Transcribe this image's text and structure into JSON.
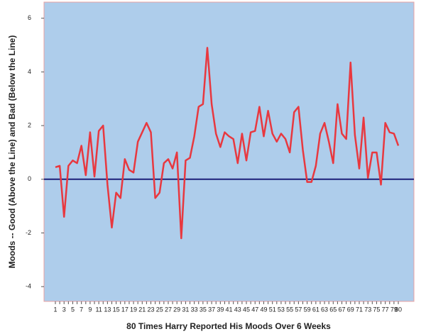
{
  "chart_data": {
    "type": "line",
    "xlabel": "80 Times Harry Reported His Moods Over 6 Weeks",
    "ylabel": "Moods -- Good (Above the Line) and Bad (Below the Line)",
    "categories": [
      "1",
      null,
      "3",
      null,
      "5",
      null,
      "7",
      null,
      "9",
      null,
      "11",
      null,
      "13",
      null,
      "15",
      null,
      "17",
      null,
      "19",
      null,
      "21",
      null,
      "23",
      null,
      "25",
      null,
      "27",
      null,
      "29",
      null,
      "31",
      null,
      "33",
      null,
      "35",
      null,
      "37",
      null,
      "39",
      null,
      "41",
      null,
      "43",
      null,
      "45",
      null,
      "47",
      null,
      "49",
      null,
      "51",
      null,
      "53",
      null,
      "55",
      null,
      "57",
      null,
      "59",
      null,
      "61",
      null,
      "63",
      null,
      "65",
      null,
      "67",
      null,
      "69",
      null,
      "71",
      null,
      "73",
      null,
      "75",
      null,
      "77",
      null,
      "79",
      "80"
    ],
    "series": [
      {
        "color": "#e8383f",
        "values": [
          0.45,
          0.5,
          -1.4,
          0.5,
          0.7,
          0.6,
          1.25,
          0.15,
          1.75,
          0.1,
          1.8,
          2.0,
          -0.2,
          -1.8,
          -0.5,
          -0.7,
          0.75,
          0.35,
          0.25,
          1.4,
          1.75,
          2.1,
          1.75,
          -0.7,
          -0.5,
          0.6,
          0.75,
          0.4,
          1.0,
          -2.2,
          0.7,
          0.8,
          1.6,
          2.7,
          2.8,
          4.9,
          2.8,
          1.7,
          1.2,
          1.75,
          1.6,
          1.5,
          0.6,
          1.7,
          0.7,
          1.75,
          1.8,
          2.7,
          1.6,
          2.55,
          1.7,
          1.4,
          1.7,
          1.5,
          1.0,
          2.5,
          2.7,
          1.1,
          -0.1,
          -0.1,
          0.5,
          1.7,
          2.1,
          1.4,
          0.6,
          2.8,
          1.7,
          1.5,
          4.35,
          1.65,
          0.4,
          2.3,
          0.05,
          1.0,
          1.0,
          -0.2,
          2.1,
          1.75,
          1.7,
          1.25
        ]
      }
    ],
    "reference_line": {
      "value": 0,
      "color": "#1c1f7a"
    },
    "ylim": [
      -4.55,
      6.6
    ],
    "yticks": [
      -4,
      -2,
      0,
      2,
      4,
      6
    ],
    "background": "#aecdeb",
    "grid": false
  }
}
